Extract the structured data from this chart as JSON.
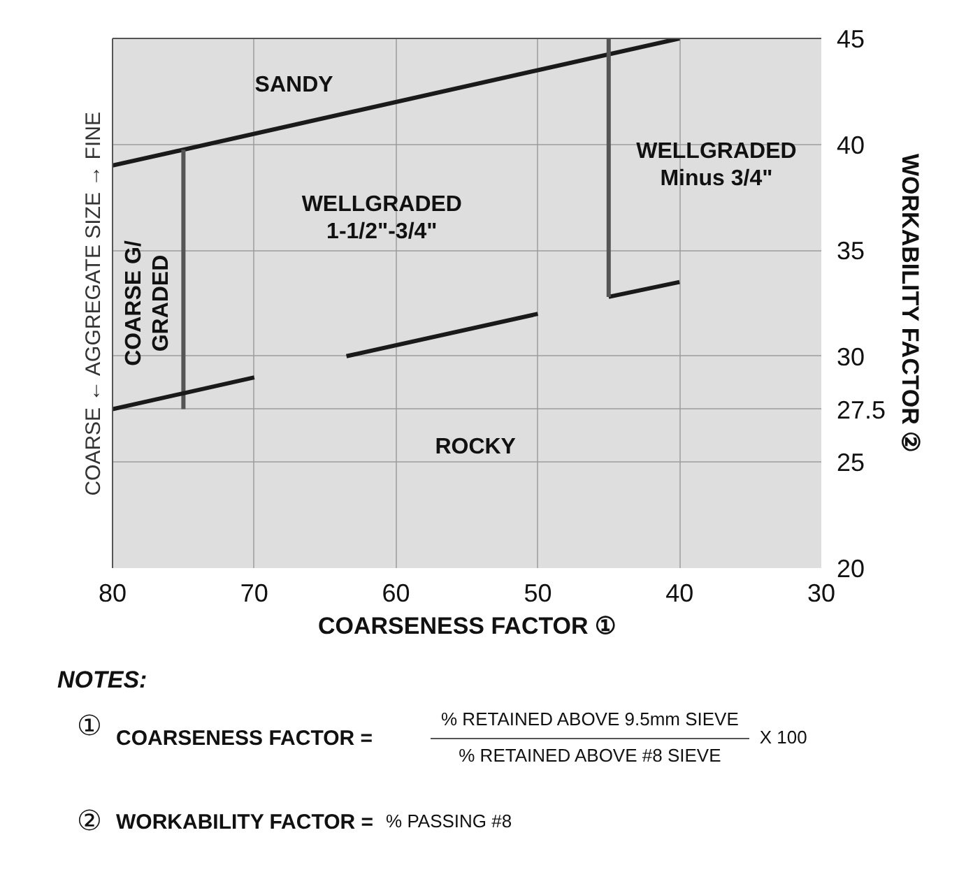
{
  "chart_data": {
    "type": "line",
    "xlabel": "COARSENESS FACTOR ①",
    "ylabel": "COARSE ← AGGREGATE SIZE → FINE",
    "y2label": "WORKABILITY FACTOR ②",
    "xlim": [
      80,
      30
    ],
    "xticks": [
      80,
      70,
      60,
      50,
      40,
      30
    ],
    "ylim": [
      20,
      45
    ],
    "yticks": [
      20,
      25,
      27.5,
      30,
      35,
      40,
      45
    ],
    "grid": true,
    "marker": "none",
    "line_style": "solid",
    "series": [
      {
        "x": [
          80,
          40
        ],
        "values": [
          39,
          45
        ],
        "color": "#1a1a1a"
      },
      {
        "x": [
          75,
          75
        ],
        "values": [
          27.5,
          39.75
        ],
        "color": "#555555"
      },
      {
        "x": [
          80,
          70
        ],
        "values": [
          27.5,
          29
        ],
        "color": "#1a1a1a"
      },
      {
        "x": [
          63.5,
          50
        ],
        "values": [
          30,
          32
        ],
        "color": "#1a1a1a"
      },
      {
        "x": [
          45,
          40
        ],
        "values": [
          32.8,
          33.5
        ],
        "color": "#1a1a1a"
      },
      {
        "x": [
          45,
          45
        ],
        "values": [
          32.8,
          45
        ],
        "color": "#555555"
      }
    ],
    "annotations": [
      "SANDY",
      "WELLGRADED\n1-1/2\"-3/4\"",
      "COARSE G/\nGRADED",
      "WELLGRADED\nMinus 3/4\"",
      "ROCKY",
      "NOTES:",
      "①",
      "COARSENESS FACTOR =",
      "% RETAINED ABOVE 9.5mm SIEVE",
      "% RETAINED ABOVE #8 SIEVE",
      "X 100",
      "②",
      "WORKABILITY FACTOR =",
      "% PASSING #8"
    ]
  }
}
